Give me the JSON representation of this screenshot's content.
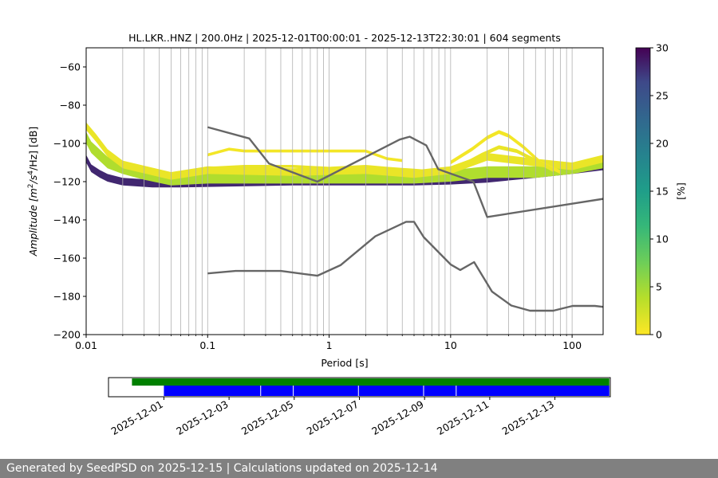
{
  "chart_data": [
    {
      "type": "heatmap",
      "title": "HL.LKR..HNZ | 200.0Hz | 2025-12-01T00:00:01 - 2025-12-13T22:30:01 | 604 segments",
      "xlabel": "Period [s]",
      "ylabel_parts": [
        "Amplitude [m",
        "2",
        "/s",
        "4",
        "/Hz] [dB]"
      ],
      "x_scale": "log",
      "xlim": [
        0.01,
        180
      ],
      "ylim": [
        -200,
        -50
      ],
      "x_ticks": [
        {
          "v": 0.01,
          "label": "0.01"
        },
        {
          "v": 0.1,
          "label": "0.1"
        },
        {
          "v": 1,
          "label": "1"
        },
        {
          "v": 10,
          "label": "10"
        },
        {
          "v": 100,
          "label": "100"
        }
      ],
      "y_ticks": [
        {
          "v": -60,
          "label": "−60"
        },
        {
          "v": -80,
          "label": "−80"
        },
        {
          "v": -100,
          "label": "−100"
        },
        {
          "v": -120,
          "label": "−120"
        },
        {
          "v": -140,
          "label": "−140"
        },
        {
          "v": -160,
          "label": "−160"
        },
        {
          "v": -180,
          "label": "−180"
        },
        {
          "v": -200,
          "label": "−200"
        }
      ],
      "grid": "vertical",
      "colorbar": {
        "label": "[%]",
        "range": [
          0,
          30
        ],
        "ticks": [
          {
            "v": 0,
            "label": "0"
          },
          {
            "v": 5,
            "label": "5"
          },
          {
            "v": 10,
            "label": "10"
          },
          {
            "v": 15,
            "label": "15"
          },
          {
            "v": 20,
            "label": "20"
          },
          {
            "v": 25,
            "label": "25"
          },
          {
            "v": 30,
            "label": "30"
          }
        ]
      },
      "noise_models": [
        {
          "points": [
            [
              0.1,
              -91.5
            ],
            [
              0.22,
              -97.4
            ],
            [
              0.32,
              -110.5
            ],
            [
              0.8,
              -120
            ],
            [
              3.8,
              -98
            ],
            [
              4.6,
              -96.5
            ],
            [
              6.3,
              -101
            ],
            [
              7.9,
              -113.5
            ],
            [
              15.4,
              -120
            ],
            [
              20,
              -138.5
            ],
            [
              180,
              -129
            ]
          ]
        },
        {
          "points": [
            [
              0.1,
              -168
            ],
            [
              0.17,
              -166.7
            ],
            [
              0.4,
              -166.7
            ],
            [
              0.8,
              -169.2
            ],
            [
              1.24,
              -163.7
            ],
            [
              2.4,
              -148.6
            ],
            [
              4.3,
              -141
            ],
            [
              5.0,
              -141
            ],
            [
              6.0,
              -149
            ],
            [
              10,
              -163.3
            ],
            [
              12,
              -166.2
            ],
            [
              15.6,
              -162.1
            ],
            [
              21.9,
              -177.5
            ],
            [
              31.6,
              -184.8
            ],
            [
              45,
              -187.5
            ],
            [
              70,
              -187.5
            ],
            [
              101,
              -185
            ],
            [
              154,
              -185
            ],
            [
              180,
              -185.5
            ]
          ]
        }
      ],
      "psd_bands": [
        {
          "points": [
            [
              0.01,
              -108
            ],
            [
              0.011,
              -113
            ],
            [
              0.013,
              -116
            ],
            [
              0.015,
              -118
            ],
            [
              0.02,
              -120
            ],
            [
              0.035,
              -121
            ],
            [
              0.06,
              -121
            ],
            [
              0.5,
              -120
            ],
            [
              2,
              -120
            ],
            [
              5,
              -120
            ],
            [
              10,
              -119.5
            ],
            [
              20,
              -118.5
            ],
            [
              50,
              -116
            ],
            [
              100,
              -114
            ],
            [
              180,
              -112
            ]
          ],
          "width_db": 4,
          "level": 28
        },
        {
          "points": [
            [
              0.01,
              -97
            ],
            [
              0.011,
              -102
            ],
            [
              0.015,
              -110
            ],
            [
              0.02,
              -113
            ],
            [
              0.03,
              -116
            ],
            [
              0.05,
              -119
            ],
            [
              0.1,
              -118
            ],
            [
              0.5,
              -118
            ],
            [
              2,
              -118
            ],
            [
              5,
              -118
            ],
            [
              10,
              -117
            ],
            [
              20,
              -115
            ],
            [
              50,
              -115
            ],
            [
              100,
              -113
            ],
            [
              180,
              -110
            ]
          ],
          "width_db": 6,
          "level": 4
        },
        {
          "points": [
            [
              0.01,
              -91
            ],
            [
              0.012,
              -97
            ],
            [
              0.015,
              -105
            ],
            [
              0.02,
              -111
            ],
            [
              0.05,
              -117
            ],
            [
              0.1,
              -114
            ],
            [
              0.5,
              -115
            ],
            [
              2,
              -114
            ],
            [
              5,
              -116
            ],
            [
              10,
              -114
            ],
            [
              20,
              -107
            ],
            [
              50,
              -110
            ],
            [
              100,
              -112
            ],
            [
              180,
              -108
            ]
          ],
          "width_db": 4,
          "level": 1
        },
        {
          "points": [
            [
              0.1,
              -106
            ],
            [
              0.15,
              -103
            ],
            [
              0.2,
              -104
            ],
            [
              0.5,
              -104
            ],
            [
              1,
              -104
            ],
            [
              1.5,
              -104
            ],
            [
              2,
              -104
            ],
            [
              3,
              -108
            ],
            [
              4,
              -109
            ]
          ],
          "width_db": 1.5,
          "level": 0.5
        },
        {
          "points": [
            [
              0.1,
              -113
            ],
            [
              0.2,
              -112
            ],
            [
              0.5,
              -112
            ],
            [
              1,
              -113
            ],
            [
              2,
              -112
            ],
            [
              3,
              -113
            ],
            [
              5,
              -114
            ],
            [
              8,
              -115
            ]
          ],
          "width_db": 1.5,
          "level": 1
        },
        {
          "points": [
            [
              10,
              -110
            ],
            [
              15,
              -103
            ],
            [
              20,
              -97
            ],
            [
              25,
              -94
            ],
            [
              30,
              -96
            ],
            [
              40,
              -102
            ],
            [
              55,
              -110
            ],
            [
              80,
              -115
            ]
          ],
          "width_db": 2,
          "level": 0.5
        },
        {
          "points": [
            [
              12,
              -112
            ],
            [
              18,
              -106
            ],
            [
              25,
              -102
            ],
            [
              35,
              -104
            ],
            [
              50,
              -109
            ],
            [
              70,
              -114
            ]
          ],
          "width_db": 2,
          "level": 1
        }
      ]
    },
    {
      "type": "timeline",
      "tick_labels": [
        "2025-12-01",
        "2025-12-03",
        "2025-12-05",
        "2025-12-07",
        "2025-12-09",
        "2025-12-11",
        "2025-12-13"
      ],
      "range_days": [
        -1.7,
        13.7
      ],
      "green_span": [
        -0.98,
        13.67
      ],
      "blue_span": [
        0.0,
        13.67
      ],
      "blue_gaps": [
        2.97,
        3.97,
        5.97,
        7.97,
        8.97
      ]
    }
  ],
  "footer": {
    "text": "Generated by SeedPSD on 2025-12-15 | Calculations updated on 2025-12-14"
  },
  "colors": {
    "noise_model": "#666666",
    "green": "#008000",
    "blue": "#0000ff",
    "grid": "#b0b0b0"
  }
}
